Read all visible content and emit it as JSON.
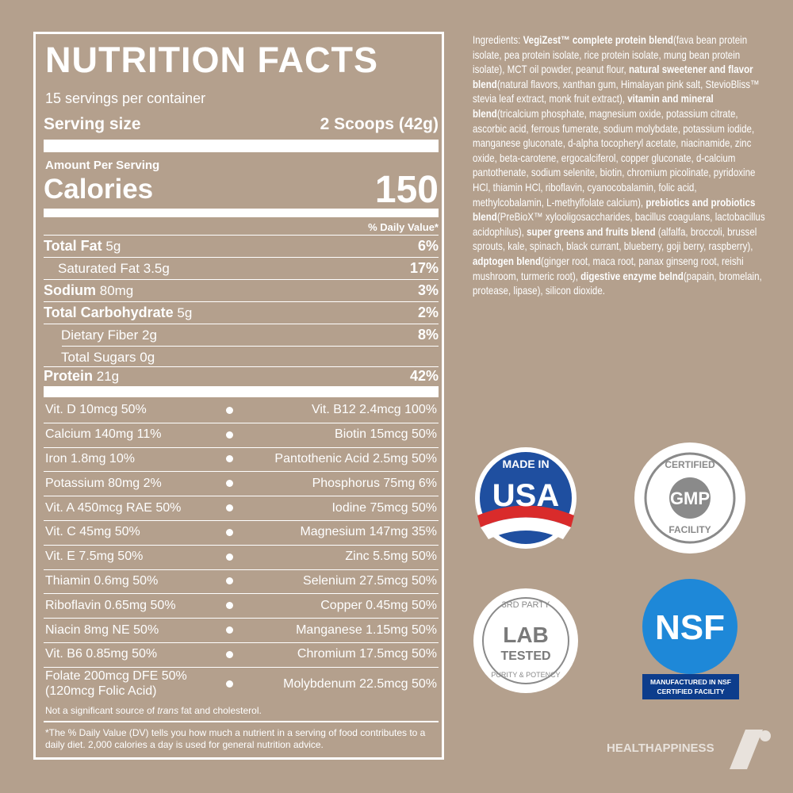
{
  "nutrition": {
    "title": "NUTRITION FACTS",
    "servings": "15 servings per container",
    "serving_size_label": "Serving size",
    "serving_size": "2 Scoops (42g)",
    "amount_per_serving": "Amount Per Serving",
    "calories_label": "Calories",
    "calories": "150",
    "dv_header": "% Daily Value*",
    "nutrients": [
      {
        "name": "Total Fat",
        "amount": "5g",
        "dv": "6%"
      },
      {
        "name": "Saturated Fat",
        "amount": "3.5g",
        "dv": "17%"
      },
      {
        "name": "Sodium",
        "amount": "80mg",
        "dv": "3%"
      },
      {
        "name": "Total Carbohydrate",
        "amount": "5g",
        "dv": "2%"
      },
      {
        "name": "Dietary Fiber",
        "amount": "2g",
        "dv": "8%"
      },
      {
        "name": "Total Sugars",
        "amount": "0g"
      },
      {
        "name": "Protein",
        "amount": "21g",
        "dv": "42%"
      }
    ],
    "vitamins": [
      {
        "left": "Vit. D 10mcg 50%",
        "right": "Vit. B12 2.4mcg 100%"
      },
      {
        "left": "Calcium 140mg 11%",
        "right": "Biotin 15mcg 50%"
      },
      {
        "left": "Iron 1.8mg 10%",
        "right": "Pantothenic Acid 2.5mg 50%"
      },
      {
        "left": "Potassium 80mg 2%",
        "right": "Phosphorus 75mg 6%"
      },
      {
        "left": "Vit. A 450mcg RAE 50%",
        "right": "Iodine 75mcg 50%"
      },
      {
        "left": "Vit. C 45mg 50%",
        "right": "Magnesium 147mg 35%"
      },
      {
        "left": "Vit. E 7.5mg 50%",
        "right": "Zinc 5.5mg 50%"
      },
      {
        "left": "Thiamin 0.6mg 50%",
        "right": "Selenium 27.5mcg 50%"
      },
      {
        "left": "Riboflavin 0.65mg 50%",
        "right": "Copper 0.45mg 50%"
      },
      {
        "left": "Niacin 8mg NE 50%",
        "right": "Manganese 1.15mg 50%"
      },
      {
        "left": "Vit. B6 0.85mg 50%",
        "right": "Chromium 17.5mcg 50%"
      },
      {
        "left": "Folate 200mcg DFE 50%",
        "left_note": "(120mcg Folic Acid)",
        "right": "Molybdenum 22.5mcg 50%"
      }
    ],
    "note_before": "Not a significant source of ",
    "note_italic": "trans",
    "note_after": " fat and cholesterol.",
    "footnote": "*The % Daily Value (DV) tells you how much a nutrient in a serving of food contributes to a daily diet. 2,000 calories a day is used for general nutrition advice."
  },
  "ingredients": [
    "Ingredients: ",
    "VegiZest™ complete protein blend",
    "(fava bean protein isolate, pea protein isolate, rice protein isolate, mung bean protein isolate), MCT oil powder, peanut flour, ",
    "natural sweetener and flavor blend",
    "(natural flavors, xanthan gum, Himalayan pink salt, StevioBliss™ stevia leaf extract, monk fruit extract), ",
    "vitamin and mineral blend",
    "(tricalcium phosphate, magnesium oxide, potassium citrate, ascorbic acid, ferrous fumerate, sodium molybdate, potassium iodide, manganese gluconate, d-alpha tocopheryl acetate, niacinamide, zinc oxide, beta-carotene, ergocalciferol, copper gluconate, d-calcium pantothenate, sodium selenite, biotin, chromium picolinate, pyridoxine HCl, thiamin HCl, riboflavin, cyanocobalamin, folic acid, methylcobalamin, L-methylfolate calcium), ",
    "prebiotics and probiotics blend",
    "(PreBioX™ xylooligosaccharides, bacillus coagulans, lactobacillus acidophilus), ",
    "super greens and fruits blend",
    " (alfalfa, broccoli, brussel sprouts, kale, spinach, black currant, blueberry, goji berry, raspberry), ",
    "adptogen blend",
    "(ginger root, maca root, panax ginseng root, reishi mushroom, turmeric root), ",
    "digestive enzyme belnd",
    "(papain, bromelain, protease, lipase), silicon dioxide."
  ],
  "badges": {
    "usa": {
      "top": "MADE IN",
      "main": "USA"
    },
    "gmp": {
      "top": "CERTIFIED",
      "main": "GMP",
      "bottom": "FACILITY"
    },
    "lab": {
      "top": "3RD PARTY",
      "main1": "LAB",
      "main2": "TESTED",
      "bottom": "PURITY & POTENCY"
    },
    "nsf": {
      "main": "NSF",
      "line1": "MANUFACTURED IN NSF",
      "line2": "CERTIFIED FACILITY"
    }
  },
  "brand": "HEALTHAPPINESS"
}
